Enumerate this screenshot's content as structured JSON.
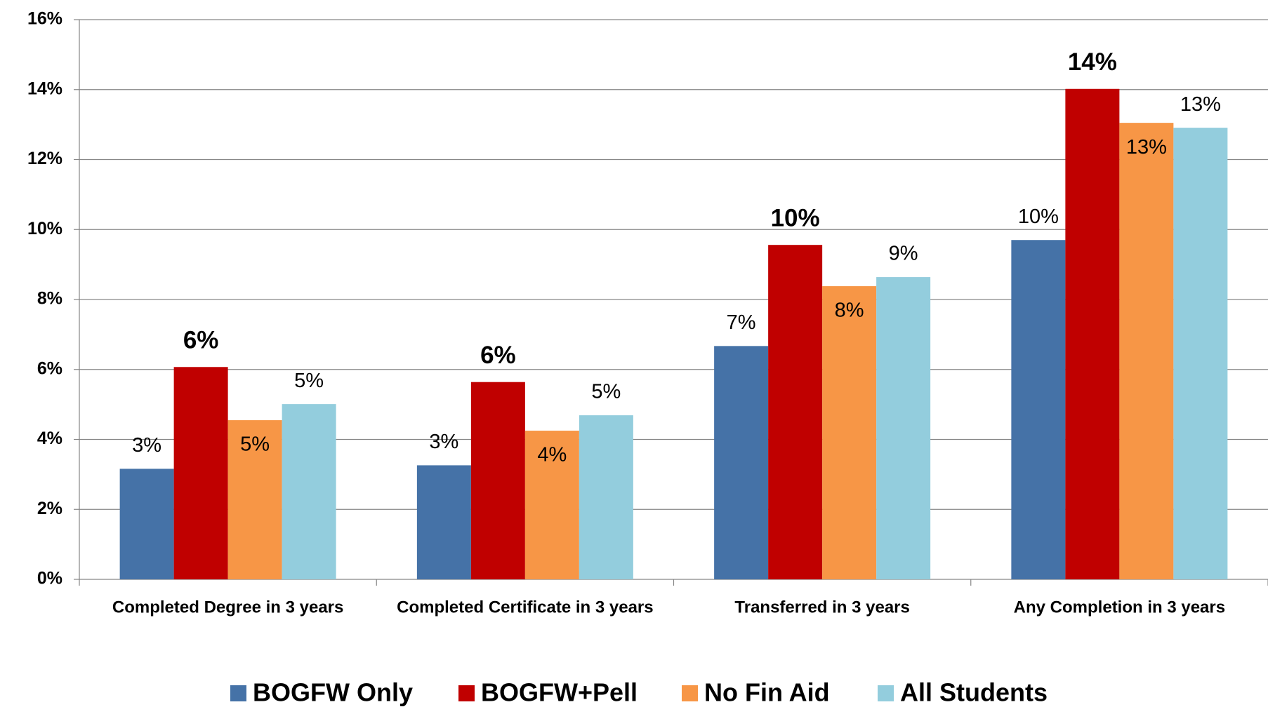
{
  "chart_data": {
    "type": "bar",
    "categories": [
      "Completed Degree in 3 years",
      "Completed Certificate in 3 years",
      "Transferred in 3 years",
      "Any Completion in 3 years"
    ],
    "series": [
      {
        "name": "BOGFW Only",
        "color": "#4572a7",
        "values": [
          3.16,
          3.26,
          6.67,
          9.7
        ],
        "value_labels": [
          "3%",
          "3%",
          "7%",
          "10%"
        ]
      },
      {
        "name": "BOGFW+Pell",
        "color": "#c00000",
        "values": [
          6.07,
          5.64,
          9.56,
          14.02
        ],
        "value_labels": [
          "6%",
          "6%",
          "10%",
          "14%"
        ]
      },
      {
        "name": "No Fin Aid",
        "color": "#f79646",
        "values": [
          4.55,
          4.25,
          8.38,
          13.05
        ],
        "value_labels": [
          "5%",
          "4%",
          "8%",
          "13%"
        ]
      },
      {
        "name": "All Students",
        "color": "#93cddd",
        "values": [
          5.01,
          4.69,
          8.64,
          12.91
        ],
        "value_labels": [
          "5%",
          "5%",
          "9%",
          "13%"
        ]
      }
    ],
    "ylim": [
      0,
      16
    ],
    "yticks": [
      {
        "value": 0,
        "label": "0%"
      },
      {
        "value": 2,
        "label": "2%"
      },
      {
        "value": 4,
        "label": "4%"
      },
      {
        "value": 6,
        "label": "6%"
      },
      {
        "value": 8,
        "label": "8%"
      },
      {
        "value": 10,
        "label": "10%"
      },
      {
        "value": 12,
        "label": "12%"
      },
      {
        "value": 14,
        "label": "14%"
      },
      {
        "value": 16,
        "label": "16%"
      }
    ],
    "grid": true,
    "legend": "bottom"
  }
}
